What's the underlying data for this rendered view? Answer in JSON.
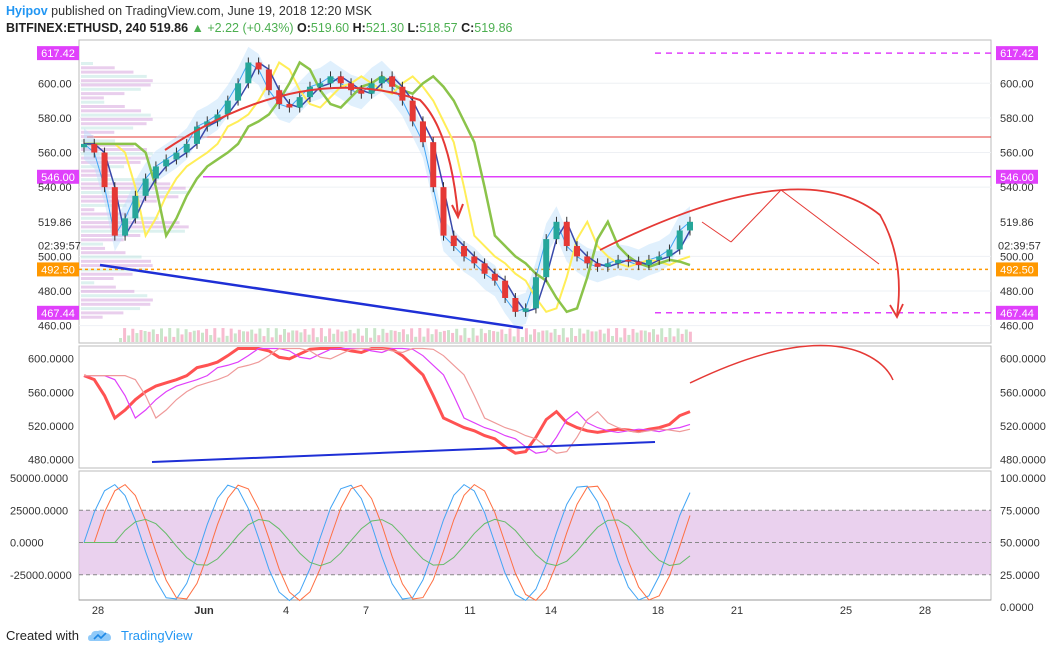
{
  "header": {
    "author": "Hyipov",
    "published": "published on TradingView.com, June 19, 2018 12:20 MSK",
    "symbol": "BITFINEX:ETHUSD, 240",
    "last": "519.86",
    "change": "+2.22 ▲ +2.22 (+0.43%)",
    "change_display": "▲ +2.22 (+0.43%)",
    "change_num": "+2.22",
    "ohlc": {
      "o_label": "O:",
      "o": "519.60",
      "h_label": "H:",
      "h": "521.30",
      "l_label": "L:",
      "l": "518.57",
      "c_label": "C:",
      "c": "519.86"
    }
  },
  "footer": {
    "created_with": "Created with",
    "brand": "TradingView"
  },
  "colors": {
    "magenta": "#e040fb",
    "orange": "#ff9800",
    "red": "#e53935",
    "blue": "#1e2fd6",
    "bull": "#26a69a",
    "bear": "#e53935",
    "band": "#2196f3"
  },
  "chart_data": [
    {
      "type": "candlestick",
      "pane": "price",
      "ylim": [
        450,
        625
      ],
      "yticks": [
        "600.00",
        "580.00",
        "560.00",
        "540.00",
        "519.86",
        "500.00",
        "480.00",
        "460.00"
      ],
      "ytick_values": [
        600,
        580,
        560,
        540,
        519.86,
        500,
        480,
        460
      ],
      "countdown": "02:39:57",
      "x_categories": [
        "28",
        "Jun",
        "4",
        "7",
        "11",
        "14",
        "18",
        "21",
        "25",
        "28"
      ],
      "close_series": [
        565,
        560,
        540,
        512,
        522,
        535,
        545,
        552,
        556,
        560,
        565,
        575,
        578,
        582,
        590,
        600,
        612,
        608,
        596,
        588,
        586,
        592,
        598,
        600,
        604,
        600,
        596,
        594,
        600,
        604,
        598,
        590,
        578,
        566,
        540,
        512,
        506,
        500,
        496,
        490,
        486,
        476,
        468,
        470,
        488,
        510,
        520,
        506,
        500,
        496,
        494,
        496,
        498,
        497,
        495,
        498,
        500,
        504,
        515,
        520
      ],
      "levels": [
        {
          "price": 617.42,
          "label": "617.42",
          "style": "dashed",
          "color": "magenta"
        },
        {
          "price": 546.0,
          "label": "546.00",
          "style": "solid",
          "color": "magenta"
        },
        {
          "price": 492.5,
          "label": "492.50",
          "style": "dotted",
          "color": "orange"
        },
        {
          "price": 467.44,
          "label": "467.44",
          "style": "dashed",
          "color": "magenta"
        },
        {
          "price": 569.0,
          "label": "",
          "style": "solid",
          "color": "red"
        }
      ],
      "annotations": [
        "rounded top arc (red)",
        "descending support trendline (blue)",
        "projected arc with arrows (red)"
      ]
    },
    {
      "type": "line",
      "pane": "oscillator",
      "yticks": [
        "600.0000",
        "560.0000",
        "520.0000",
        "480.0000"
      ],
      "ytick_values": [
        600,
        560,
        520,
        480
      ],
      "ylim": [
        470,
        615
      ]
    },
    {
      "type": "line",
      "pane": "stochastic",
      "yticks_left": [
        "50000.0000",
        "25000.0000",
        "0.0000",
        "-25000.0000"
      ],
      "yticks_right": [
        "100.0000",
        "75.0000",
        "50.0000",
        "25.0000",
        "0.0000"
      ],
      "ytick_values_right": [
        100,
        75,
        50,
        25,
        0
      ],
      "band": [
        25,
        75
      ]
    }
  ]
}
